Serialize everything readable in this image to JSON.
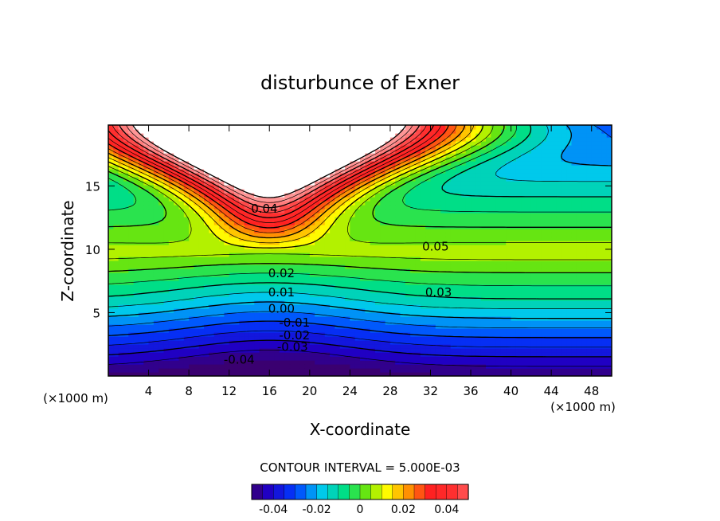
{
  "chart_data": {
    "type": "heatmap",
    "title": "disturbunce of Exner",
    "xlabel": "X-coordinate",
    "ylabel": "Z-coordinate",
    "x_unit": "(×1000 m)",
    "y_unit": "(×1000 m)",
    "xlim": [
      0,
      50
    ],
    "ylim": [
      0,
      19.8
    ],
    "x_ticks": [
      4,
      8,
      12,
      16,
      20,
      24,
      28,
      32,
      36,
      40,
      44,
      48
    ],
    "y_ticks": [
      5,
      10,
      15
    ],
    "contour_interval_text": "CONTOUR INTERVAL = 5.000E-03",
    "colorbar": {
      "range": [
        -0.05,
        0.05
      ],
      "ticks": [
        "-0.04",
        "-0.02",
        "0",
        "0.02",
        "0.04"
      ],
      "tick_values": [
        -0.04,
        -0.02,
        0,
        0.02,
        0.04
      ]
    },
    "contour_labels": [
      {
        "text": "0.04",
        "x": 15.5,
        "z": 13.2
      },
      {
        "text": "0.05",
        "x": 32.5,
        "z": 10.2
      },
      {
        "text": "0.03",
        "x": 32.8,
        "z": 6.6
      },
      {
        "text": "0.02",
        "x": 17.2,
        "z": 8.1
      },
      {
        "text": "0.01",
        "x": 17.2,
        "z": 6.6
      },
      {
        "text": "0.00",
        "x": 17.2,
        "z": 5.3
      },
      {
        "text": "-0.01",
        "x": 18.5,
        "z": 4.2
      },
      {
        "text": "-0.02",
        "x": 18.5,
        "z": 3.2
      },
      {
        "text": "-0.03",
        "x": 18.3,
        "z": 2.3
      },
      {
        "text": "-0.04",
        "x": 13.0,
        "z": 1.3
      }
    ],
    "colors": {
      "low": "#3a0070",
      "mid": "#ffff00",
      "high": "#ff2020",
      "blank": "#ffffff"
    }
  }
}
